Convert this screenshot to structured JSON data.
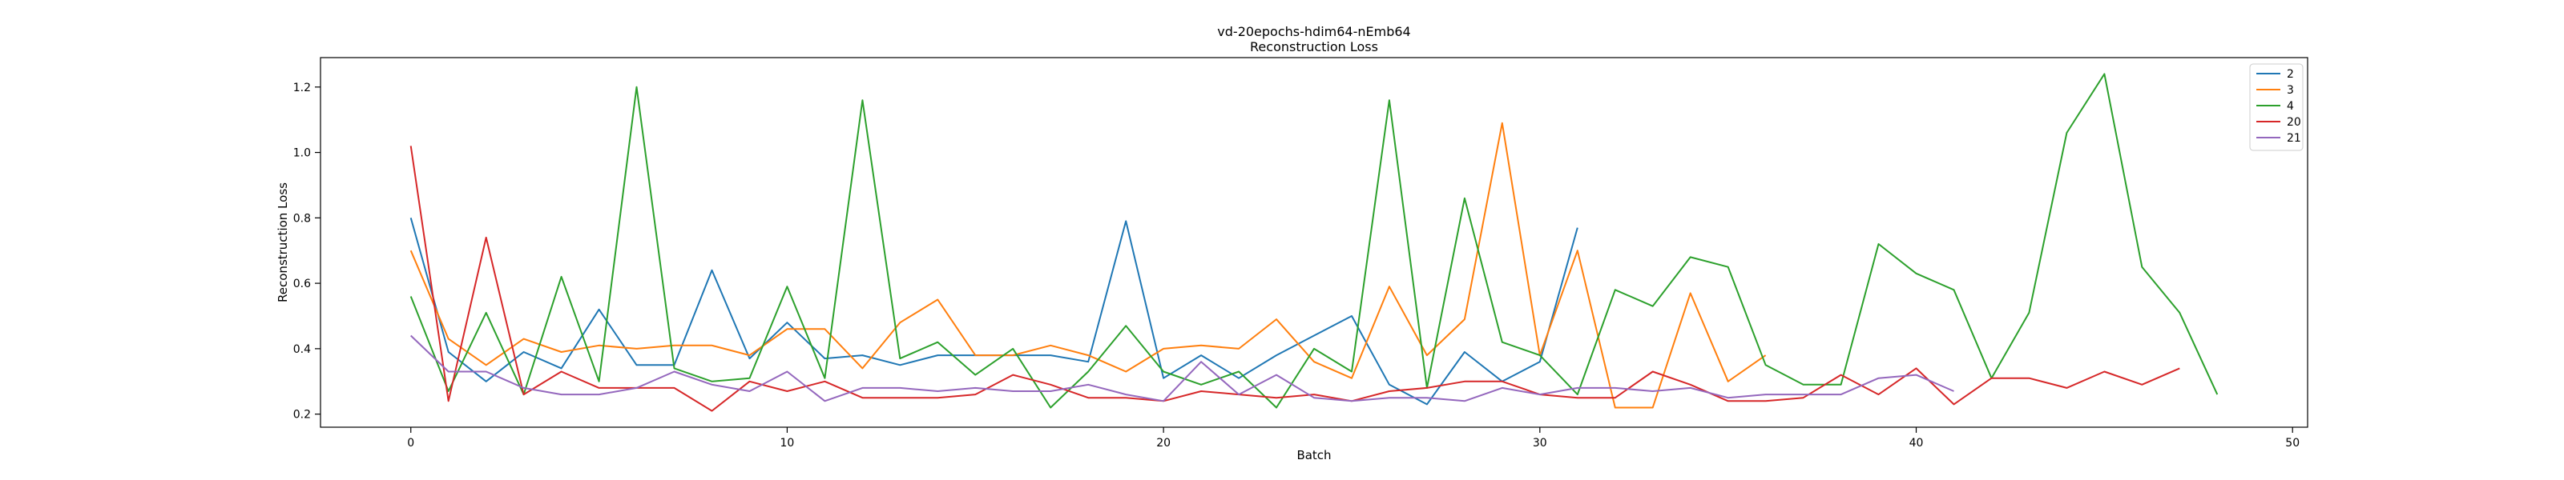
{
  "chart_data": {
    "type": "line",
    "title": "vd-20epochs-hdim64-nEmb64",
    "subtitle": "Reconstruction Loss",
    "xlabel": "Batch",
    "ylabel": "Reconstruction Loss",
    "xlim": [
      -2.4,
      50.4
    ],
    "ylim": [
      0.16,
      1.29
    ],
    "xticks": [
      0,
      10,
      20,
      30,
      40,
      50
    ],
    "yticks": [
      0.2,
      0.4,
      0.6,
      0.8,
      1.0,
      1.2
    ],
    "ytick_labels": [
      "0.2",
      "0.4",
      "0.6",
      "0.8",
      "1.0",
      "1.2"
    ],
    "grid": false,
    "legend_position": "top-right",
    "series": [
      {
        "name": "2",
        "color": "#1f77b4",
        "values": [
          0.8,
          0.39,
          0.3,
          0.39,
          0.34,
          0.52,
          0.35,
          0.35,
          0.64,
          0.37,
          0.48,
          0.37,
          0.38,
          0.35,
          0.38,
          0.38,
          0.38,
          0.38,
          0.36,
          0.79,
          0.31,
          0.38,
          0.31,
          0.38,
          0.44,
          0.5,
          0.29,
          0.23,
          0.39,
          0.3,
          0.36,
          0.77
        ]
      },
      {
        "name": "3",
        "color": "#ff7f0e",
        "values": [
          0.7,
          0.43,
          0.35,
          0.43,
          0.39,
          0.41,
          0.4,
          0.41,
          0.41,
          0.38,
          0.46,
          0.46,
          0.34,
          0.48,
          0.55,
          0.38,
          0.38,
          0.41,
          0.38,
          0.33,
          0.4,
          0.41,
          0.4,
          0.49,
          0.36,
          0.31,
          0.59,
          0.38,
          0.49,
          1.09,
          0.38,
          0.7,
          0.22,
          0.22,
          0.57,
          0.3,
          0.38
        ]
      },
      {
        "name": "4",
        "color": "#2ca02c",
        "values": [
          0.56,
          0.27,
          0.51,
          0.26,
          0.62,
          0.3,
          1.2,
          0.34,
          0.3,
          0.31,
          0.59,
          0.31,
          1.16,
          0.37,
          0.42,
          0.32,
          0.4,
          0.22,
          0.33,
          0.47,
          0.33,
          0.29,
          0.33,
          0.22,
          0.4,
          0.33,
          1.16,
          0.28,
          0.86,
          0.42,
          0.38,
          0.26,
          0.58,
          0.53,
          0.68,
          0.65,
          0.35,
          0.29,
          0.29,
          0.72,
          0.63,
          0.58,
          0.31,
          0.51,
          1.06,
          1.24,
          0.65,
          0.51,
          0.26
        ]
      },
      {
        "name": "20",
        "color": "#d62728",
        "values": [
          1.02,
          0.24,
          0.74,
          0.26,
          0.33,
          0.28,
          0.28,
          0.28,
          0.21,
          0.3,
          0.27,
          0.3,
          0.25,
          0.25,
          0.25,
          0.26,
          0.32,
          0.29,
          0.25,
          0.25,
          0.24,
          0.27,
          0.26,
          0.25,
          0.26,
          0.24,
          0.27,
          0.28,
          0.3,
          0.3,
          0.26,
          0.25,
          0.25,
          0.33,
          0.29,
          0.24,
          0.24,
          0.25,
          0.32,
          0.26,
          0.34,
          0.23,
          0.31,
          0.31,
          0.28,
          0.33,
          0.29,
          0.34
        ]
      },
      {
        "name": "21",
        "color": "#9467bd",
        "values": [
          0.44,
          0.33,
          0.33,
          0.28,
          0.26,
          0.26,
          0.28,
          0.33,
          0.29,
          0.27,
          0.33,
          0.24,
          0.28,
          0.28,
          0.27,
          0.28,
          0.27,
          0.27,
          0.29,
          0.26,
          0.24,
          0.36,
          0.26,
          0.32,
          0.25,
          0.24,
          0.25,
          0.25,
          0.24,
          0.28,
          0.26,
          0.28,
          0.28,
          0.27,
          0.28,
          0.25,
          0.26,
          0.26,
          0.26,
          0.31,
          0.32,
          0.27
        ]
      }
    ]
  }
}
